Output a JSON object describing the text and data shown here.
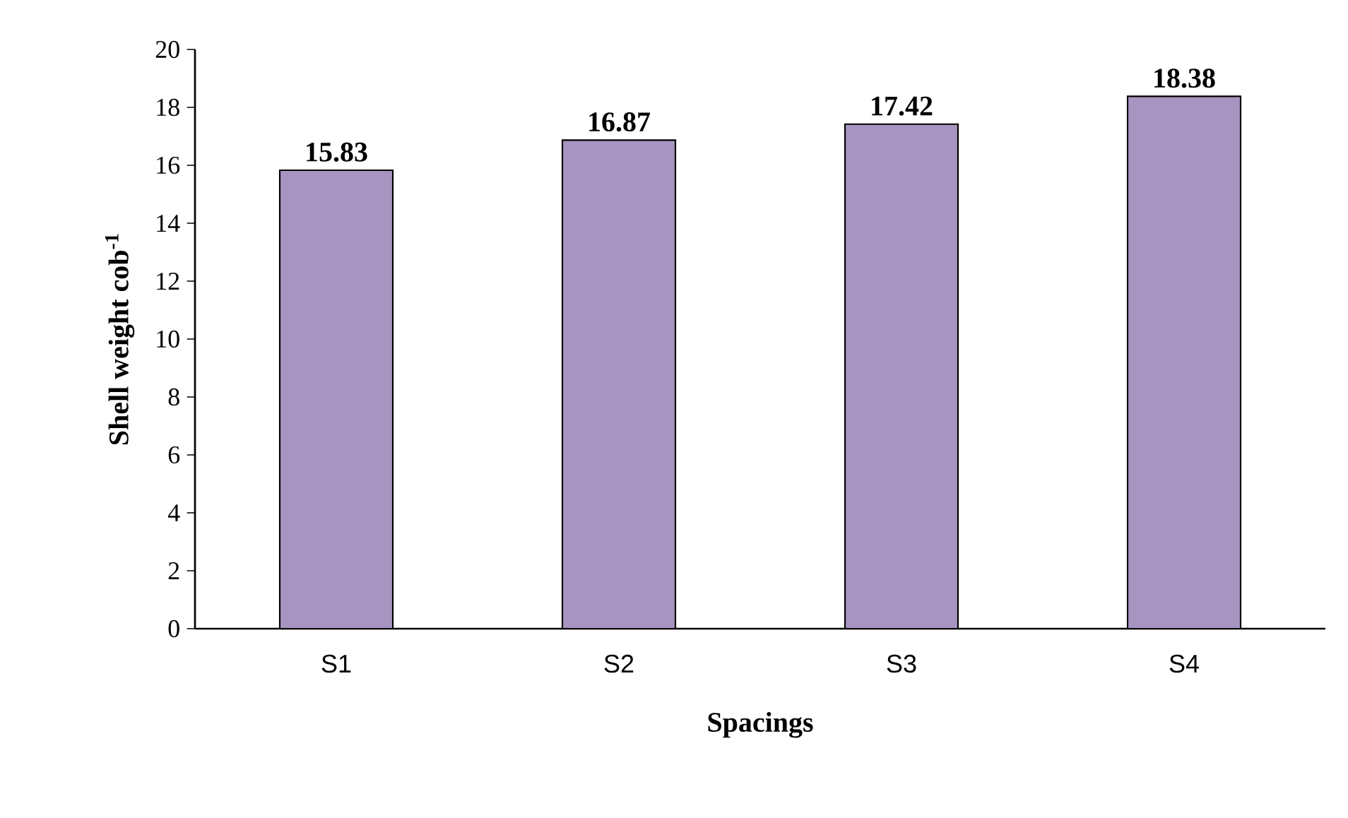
{
  "chart_data": {
    "type": "bar",
    "xlabel": "Spacings",
    "ylabel": "Shell weight cob$^{-1}$",
    "categories": [
      "S1",
      "S2",
      "S3",
      "S4"
    ],
    "values": [
      15.83,
      16.87,
      17.42,
      18.38
    ],
    "color": "#a794c0",
    "ylim": [
      0,
      20
    ],
    "yticks": [
      0,
      2,
      4,
      6,
      8,
      10,
      12,
      14,
      16,
      18,
      20
    ],
    "data_labels": true
  }
}
